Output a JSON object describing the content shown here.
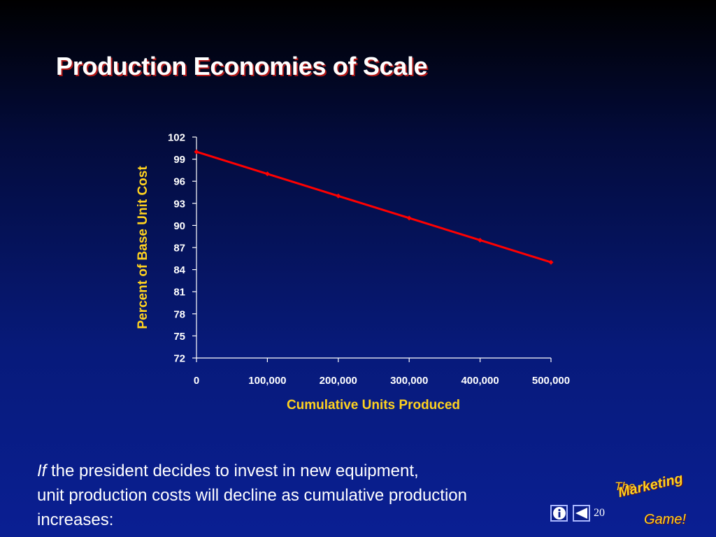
{
  "slide": {
    "title": "Production Economies of Scale",
    "caption_if": "If",
    "caption_rest": " the president decides to invest in new equipment,",
    "caption_line2": "unit production costs will decline as cumulative production",
    "caption_line3": "increases:",
    "page_number": "20",
    "logo": {
      "line1": "The",
      "line2": "Marketing",
      "line3": "Game!"
    },
    "nav": {
      "info_icon": "info-icon",
      "back_icon": "back-arrow-icon"
    }
  },
  "colors": {
    "background_top": "#000000",
    "background_bottom": "#0a1f93",
    "title": "#ffffff",
    "title_shadow": "#b01818",
    "axis_label": "#ffd21f",
    "tick_label": "#ffffff",
    "line": "#ff0000",
    "logo": "#ffd21f"
  },
  "chart_data": {
    "type": "line",
    "title": "",
    "xlabel": "Cumulative Units Produced",
    "ylabel": "Percent of Base Unit Cost",
    "x": [
      0,
      100000,
      200000,
      300000,
      400000,
      500000
    ],
    "series": [
      {
        "values": [
          100,
          97,
          94,
          91,
          88,
          85
        ]
      }
    ],
    "xlim": [
      0,
      500000
    ],
    "ylim": [
      72,
      102
    ],
    "x_ticks": [
      "0",
      "100,000",
      "200,000",
      "300,000",
      "400,000",
      "500,000"
    ],
    "y_ticks": [
      "102",
      "99",
      "96",
      "93",
      "90",
      "87",
      "84",
      "81",
      "78",
      "75",
      "72"
    ],
    "grid": false,
    "legend": "none"
  }
}
